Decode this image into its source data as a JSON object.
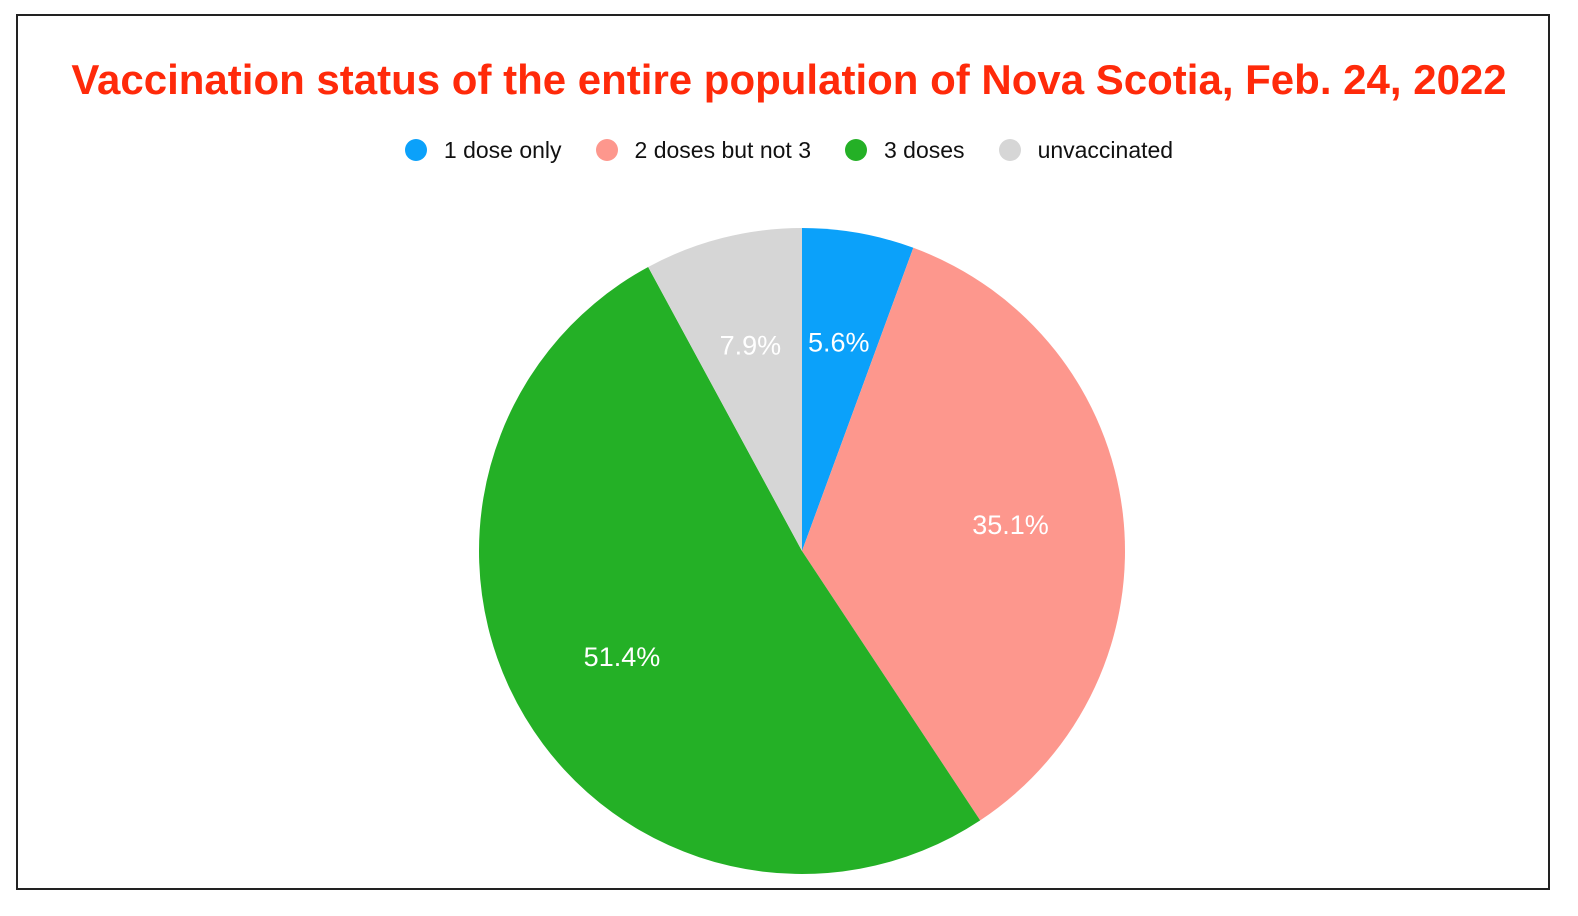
{
  "chart_data": {
    "type": "pie",
    "title": "Vaccination status of the entire population of Nova Scotia, Feb. 24, 2022",
    "title_color": "#ff2a0a",
    "legend_position": "top",
    "categories": [
      "1 dose only",
      "2 doses but not 3",
      "3 doses",
      "unvaccinated"
    ],
    "values": [
      5.6,
      35.1,
      51.4,
      7.9
    ],
    "labels": [
      "5.6%",
      "35.1%",
      "51.4%",
      "7.9%"
    ],
    "colors": [
      "#0ba1fa",
      "#fd978d",
      "#24b026",
      "#d6d6d6"
    ]
  }
}
